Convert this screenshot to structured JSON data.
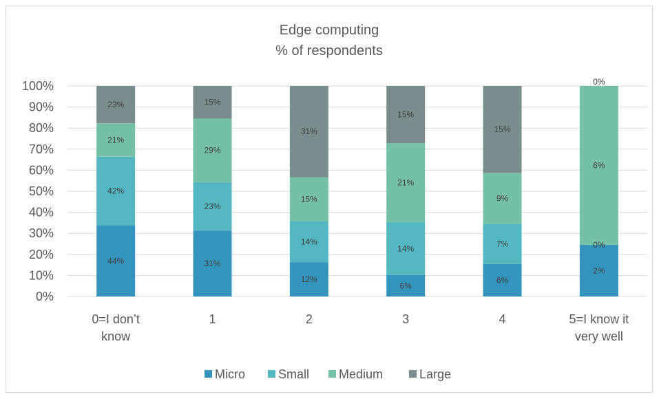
{
  "chart_data": {
    "type": "bar",
    "stacked": "percent",
    "title": "Edge computing",
    "subtitle": "% of respondents",
    "categories": [
      [
        "0=I don’t",
        "know"
      ],
      [
        "1"
      ],
      [
        "2"
      ],
      [
        "3"
      ],
      [
        "4"
      ],
      [
        "5=I know it",
        "very well"
      ]
    ],
    "ylim": [
      0,
      100
    ],
    "yticks": [
      "0%",
      "10%",
      "20%",
      "30%",
      "40%",
      "50%",
      "60%",
      "70%",
      "80%",
      "90%",
      "100%"
    ],
    "grid": true,
    "legend_position": "bottom",
    "series": [
      {
        "name": "Micro",
        "color": "#3494bc",
        "labels": [
          "44%",
          "31%",
          "12%",
          "6%",
          "6%",
          "2%"
        ],
        "share": [
          33.8,
          31.3,
          16.2,
          10.2,
          15.4,
          24.5
        ]
      },
      {
        "name": "Small",
        "color": "#55b7c1",
        "labels": [
          "42%",
          "23%",
          "14%",
          "14%",
          "7%",
          "0%"
        ],
        "share": [
          32.6,
          23.0,
          19.6,
          25.1,
          19.1,
          0
        ]
      },
      {
        "name": "Medium",
        "color": "#76c0a5",
        "labels": [
          "21%",
          "29%",
          "15%",
          "21%",
          "9%",
          "6%"
        ],
        "share": [
          15.9,
          30.2,
          20.9,
          37.5,
          24.2,
          75.5
        ]
      },
      {
        "name": "Large",
        "color": "#7a8c8e",
        "labels": [
          "23%",
          "15%",
          "31%",
          "15%",
          "15%",
          "0%"
        ],
        "share": [
          17.7,
          15.5,
          43.3,
          27.2,
          41.3,
          0
        ]
      }
    ]
  }
}
